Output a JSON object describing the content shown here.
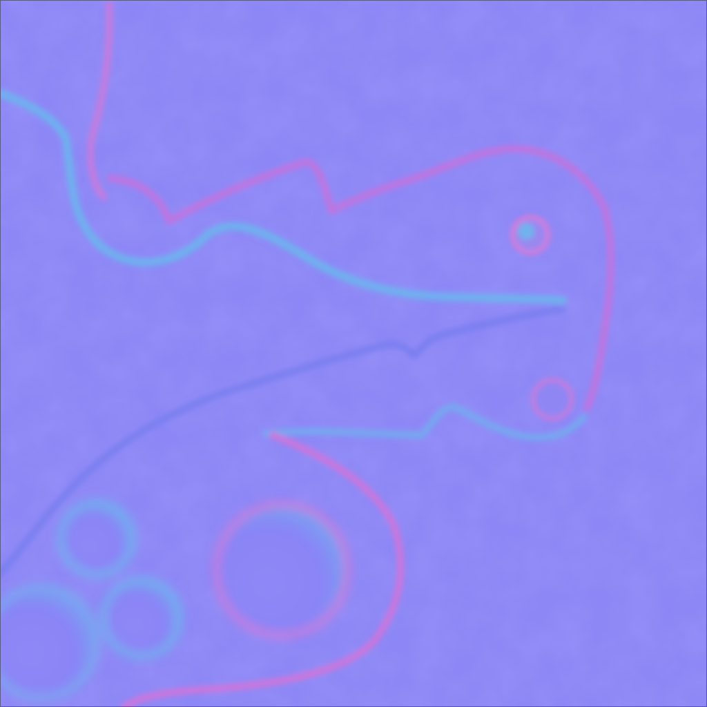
{
  "texture": {
    "kind": "normal-map",
    "subject": "embossed-creature-outline",
    "colors": {
      "base": "#8a84f6",
      "base_light": "#938cf7",
      "highlight_left": "#6fa8f3",
      "highlight_top": "#b07fe8",
      "shadow_right": "#d36fd8",
      "shadow_bottom": "#7078ee",
      "border": "#5a5a8a"
    },
    "icons": [
      "ridge-outline-icon",
      "eye-bump-icon",
      "circle-bump-icon"
    ]
  }
}
